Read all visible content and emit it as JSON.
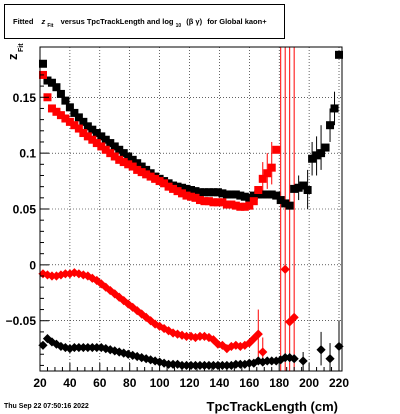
{
  "chart_data": {
    "type": "scatter",
    "title": {
      "prefix": "Fitted",
      "z": "z",
      "z_sub": "Fit",
      "middle": "versus TpcTrackLength and log",
      "log_sub": "10",
      "beta_gamma": "(β γ)",
      "suffix": "for Global kaon+"
    },
    "ylabel": {
      "main": "z",
      "sub": "Fit"
    },
    "xlabel": "TpcTrackLength (cm)",
    "timestamp": "Thu Sep 22 07:50:16 2022",
    "xlim": [
      20,
      222
    ],
    "ylim": [
      -0.095,
      0.195
    ],
    "xticks": [
      20,
      40,
      60,
      80,
      100,
      120,
      140,
      160,
      180,
      200,
      220
    ],
    "yticks": [
      -0.05,
      0,
      0.05,
      0.1,
      0.15
    ],
    "ytick_labels": [
      "−0.05",
      "0",
      "0.05",
      "0.1",
      "0.15"
    ],
    "grid": true,
    "series": [
      {
        "color": "#000000",
        "marker": "square",
        "points": [
          [
            22,
            0.18
          ],
          [
            25,
            0.165
          ],
          [
            28,
            0.163
          ],
          [
            31,
            0.159
          ],
          [
            34,
            0.153
          ],
          [
            37,
            0.147
          ],
          [
            40,
            0.141
          ],
          [
            43,
            0.136
          ],
          [
            46,
            0.132
          ],
          [
            49,
            0.128
          ],
          [
            52,
            0.124
          ],
          [
            55,
            0.121
          ],
          [
            58,
            0.118
          ],
          [
            61,
            0.115
          ],
          [
            64,
            0.112
          ],
          [
            67,
            0.109
          ],
          [
            70,
            0.106
          ],
          [
            73,
            0.103
          ],
          [
            76,
            0.1
          ],
          [
            79,
            0.097
          ],
          [
            82,
            0.094
          ],
          [
            85,
            0.091
          ],
          [
            88,
            0.088
          ],
          [
            91,
            0.085
          ],
          [
            94,
            0.082
          ],
          [
            97,
            0.079
          ],
          [
            100,
            0.077
          ],
          [
            103,
            0.075
          ],
          [
            106,
            0.073
          ],
          [
            109,
            0.071
          ],
          [
            112,
            0.07
          ],
          [
            115,
            0.069
          ],
          [
            118,
            0.068
          ],
          [
            121,
            0.067
          ],
          [
            124,
            0.066
          ],
          [
            127,
            0.065
          ],
          [
            130,
            0.065
          ],
          [
            133,
            0.065
          ],
          [
            136,
            0.065
          ],
          [
            139,
            0.065
          ],
          [
            142,
            0.064
          ],
          [
            145,
            0.063
          ],
          [
            148,
            0.063
          ],
          [
            151,
            0.063
          ],
          [
            154,
            0.062
          ],
          [
            157,
            0.061
          ],
          [
            160,
            0.06
          ],
          [
            163,
            0.062
          ],
          [
            166,
            0.063
          ],
          [
            169,
            0.063
          ],
          [
            172,
            0.063
          ],
          [
            175,
            0.063
          ],
          [
            178,
            0.062
          ],
          [
            181,
            0.058
          ],
          [
            184,
            0.055
          ],
          [
            187,
            0.053
          ],
          [
            190,
            0.068
          ],
          [
            193,
            0.069
          ],
          [
            196,
            0.071
          ],
          [
            199,
            0.067
          ],
          [
            202,
            0.095
          ],
          [
            205,
            0.098
          ],
          [
            208,
            0.1
          ],
          [
            211,
            0.105
          ],
          [
            214,
            0.125
          ],
          [
            217,
            0.14
          ],
          [
            220,
            0.188
          ]
        ]
      },
      {
        "color": "#ff0000",
        "marker": "square",
        "points": [
          [
            22,
            0.17
          ],
          [
            25,
            0.15
          ],
          [
            28,
            0.14
          ],
          [
            31,
            0.137
          ],
          [
            34,
            0.134
          ],
          [
            37,
            0.131
          ],
          [
            40,
            0.128
          ],
          [
            43,
            0.125
          ],
          [
            46,
            0.122
          ],
          [
            49,
            0.118
          ],
          [
            52,
            0.115
          ],
          [
            55,
            0.112
          ],
          [
            58,
            0.109
          ],
          [
            61,
            0.106
          ],
          [
            64,
            0.103
          ],
          [
            67,
            0.1
          ],
          [
            70,
            0.097
          ],
          [
            73,
            0.094
          ],
          [
            76,
            0.092
          ],
          [
            79,
            0.09
          ],
          [
            82,
            0.088
          ],
          [
            85,
            0.085
          ],
          [
            88,
            0.083
          ],
          [
            91,
            0.081
          ],
          [
            94,
            0.079
          ],
          [
            97,
            0.077
          ],
          [
            100,
            0.075
          ],
          [
            103,
            0.073
          ],
          [
            106,
            0.07
          ],
          [
            109,
            0.068
          ],
          [
            112,
            0.066
          ],
          [
            115,
            0.064
          ],
          [
            118,
            0.062
          ],
          [
            121,
            0.061
          ],
          [
            124,
            0.06
          ],
          [
            127,
            0.058
          ],
          [
            130,
            0.057
          ],
          [
            133,
            0.057
          ],
          [
            136,
            0.056
          ],
          [
            139,
            0.056
          ],
          [
            142,
            0.056
          ],
          [
            145,
            0.054
          ],
          [
            148,
            0.054
          ],
          [
            151,
            0.053
          ],
          [
            154,
            0.052
          ],
          [
            157,
            0.052
          ],
          [
            160,
            0.053
          ],
          [
            163,
            0.057
          ],
          [
            166,
            0.067
          ],
          [
            169,
            0.077
          ],
          [
            172,
            0.082
          ],
          [
            175,
            0.087
          ],
          [
            178,
            0.103
          ]
        ]
      },
      {
        "color": "#ff0000",
        "marker": "diamond",
        "points": [
          [
            22,
            -0.008
          ],
          [
            25,
            -0.009
          ],
          [
            28,
            -0.01
          ],
          [
            31,
            -0.01
          ],
          [
            34,
            -0.009
          ],
          [
            37,
            -0.008
          ],
          [
            40,
            -0.008
          ],
          [
            43,
            -0.007
          ],
          [
            46,
            -0.008
          ],
          [
            49,
            -0.009
          ],
          [
            52,
            -0.01
          ],
          [
            55,
            -0.012
          ],
          [
            58,
            -0.014
          ],
          [
            61,
            -0.017
          ],
          [
            64,
            -0.02
          ],
          [
            67,
            -0.023
          ],
          [
            70,
            -0.026
          ],
          [
            73,
            -0.029
          ],
          [
            76,
            -0.032
          ],
          [
            79,
            -0.035
          ],
          [
            82,
            -0.038
          ],
          [
            85,
            -0.041
          ],
          [
            88,
            -0.044
          ],
          [
            91,
            -0.047
          ],
          [
            94,
            -0.05
          ],
          [
            97,
            -0.053
          ],
          [
            100,
            -0.055
          ],
          [
            103,
            -0.057
          ],
          [
            106,
            -0.059
          ],
          [
            109,
            -0.061
          ],
          [
            112,
            -0.062
          ],
          [
            115,
            -0.063
          ],
          [
            118,
            -0.064
          ],
          [
            121,
            -0.064
          ],
          [
            124,
            -0.065
          ],
          [
            127,
            -0.064
          ],
          [
            130,
            -0.064
          ],
          [
            133,
            -0.065
          ],
          [
            136,
            -0.067
          ],
          [
            139,
            -0.071
          ],
          [
            142,
            -0.072
          ],
          [
            145,
            -0.075
          ],
          [
            148,
            -0.073
          ],
          [
            151,
            -0.072
          ],
          [
            154,
            -0.073
          ],
          [
            157,
            -0.072
          ],
          [
            160,
            -0.07
          ],
          [
            163,
            -0.066
          ],
          [
            166,
            -0.062
          ],
          [
            169,
            -0.078
          ],
          [
            184,
            -0.004
          ],
          [
            187,
            -0.051
          ],
          [
            190,
            -0.047
          ]
        ]
      },
      {
        "color": "#000000",
        "marker": "diamond",
        "points": [
          [
            22,
            -0.072
          ],
          [
            25,
            -0.066
          ],
          [
            28,
            -0.069
          ],
          [
            31,
            -0.071
          ],
          [
            34,
            -0.073
          ],
          [
            37,
            -0.074
          ],
          [
            40,
            -0.075
          ],
          [
            43,
            -0.074
          ],
          [
            46,
            -0.074
          ],
          [
            49,
            -0.074
          ],
          [
            52,
            -0.074
          ],
          [
            55,
            -0.074
          ],
          [
            58,
            -0.074
          ],
          [
            61,
            -0.074
          ],
          [
            64,
            -0.075
          ],
          [
            67,
            -0.076
          ],
          [
            70,
            -0.077
          ],
          [
            73,
            -0.078
          ],
          [
            76,
            -0.079
          ],
          [
            79,
            -0.08
          ],
          [
            82,
            -0.081
          ],
          [
            85,
            -0.082
          ],
          [
            88,
            -0.083
          ],
          [
            91,
            -0.084
          ],
          [
            94,
            -0.085
          ],
          [
            97,
            -0.086
          ],
          [
            100,
            -0.087
          ],
          [
            103,
            -0.088
          ],
          [
            106,
            -0.089
          ],
          [
            109,
            -0.089
          ],
          [
            112,
            -0.089
          ],
          [
            115,
            -0.09
          ],
          [
            118,
            -0.09
          ],
          [
            121,
            -0.09
          ],
          [
            124,
            -0.09
          ],
          [
            127,
            -0.09
          ],
          [
            130,
            -0.09
          ],
          [
            133,
            -0.09
          ],
          [
            136,
            -0.09
          ],
          [
            139,
            -0.09
          ],
          [
            142,
            -0.09
          ],
          [
            145,
            -0.09
          ],
          [
            148,
            -0.09
          ],
          [
            151,
            -0.089
          ],
          [
            154,
            -0.089
          ],
          [
            157,
            -0.089
          ],
          [
            160,
            -0.088
          ],
          [
            163,
            -0.088
          ],
          [
            166,
            -0.086
          ],
          [
            169,
            -0.087
          ],
          [
            172,
            -0.086
          ],
          [
            175,
            -0.086
          ],
          [
            178,
            -0.086
          ],
          [
            181,
            -0.085
          ],
          [
            184,
            -0.083
          ],
          [
            187,
            -0.083
          ],
          [
            190,
            -0.084
          ],
          [
            196,
            -0.086
          ],
          [
            208,
            -0.076
          ],
          [
            214,
            -0.084
          ],
          [
            220,
            -0.073
          ]
        ]
      }
    ],
    "error_bars": [
      {
        "color": "#ff0000",
        "x": 169,
        "lo": 0.065,
        "hi": 0.092
      },
      {
        "color": "#ff0000",
        "x": 172,
        "lo": 0.068,
        "hi": 0.1
      },
      {
        "color": "#ff0000",
        "x": 175,
        "lo": 0.072,
        "hi": 0.11
      },
      {
        "color": "#ff0000",
        "x": 181,
        "lo": -0.095,
        "hi": 0.195
      },
      {
        "color": "#ff0000",
        "x": 184,
        "lo": -0.095,
        "hi": 0.195
      },
      {
        "color": "#ff0000",
        "x": 187,
        "lo": -0.095,
        "hi": 0.195
      },
      {
        "color": "#ff0000",
        "x": 190,
        "lo": -0.095,
        "hi": 0.195
      },
      {
        "color": "#ff0000",
        "x": 166,
        "lo": -0.085,
        "hi": -0.04
      },
      {
        "color": "#ff0000",
        "x": 169,
        "lo": -0.09,
        "hi": -0.065
      },
      {
        "color": "#000000",
        "x": 193,
        "lo": 0.058,
        "hi": 0.08
      },
      {
        "color": "#000000",
        "x": 199,
        "lo": 0.05,
        "hi": 0.085
      },
      {
        "color": "#000000",
        "x": 202,
        "lo": 0.08,
        "hi": 0.11
      },
      {
        "color": "#000000",
        "x": 205,
        "lo": 0.08,
        "hi": 0.115
      },
      {
        "color": "#000000",
        "x": 208,
        "lo": 0.085,
        "hi": 0.125
      },
      {
        "color": "#000000",
        "x": 214,
        "lo": 0.11,
        "hi": 0.14
      },
      {
        "color": "#000000",
        "x": 217,
        "lo": 0.125,
        "hi": 0.155
      },
      {
        "color": "#000000",
        "x": 196,
        "lo": -0.095,
        "hi": -0.078
      },
      {
        "color": "#000000",
        "x": 208,
        "lo": -0.09,
        "hi": -0.06
      },
      {
        "color": "#000000",
        "x": 214,
        "lo": -0.095,
        "hi": -0.07
      },
      {
        "color": "#000000",
        "x": 220,
        "lo": -0.09,
        "hi": -0.05
      }
    ]
  }
}
